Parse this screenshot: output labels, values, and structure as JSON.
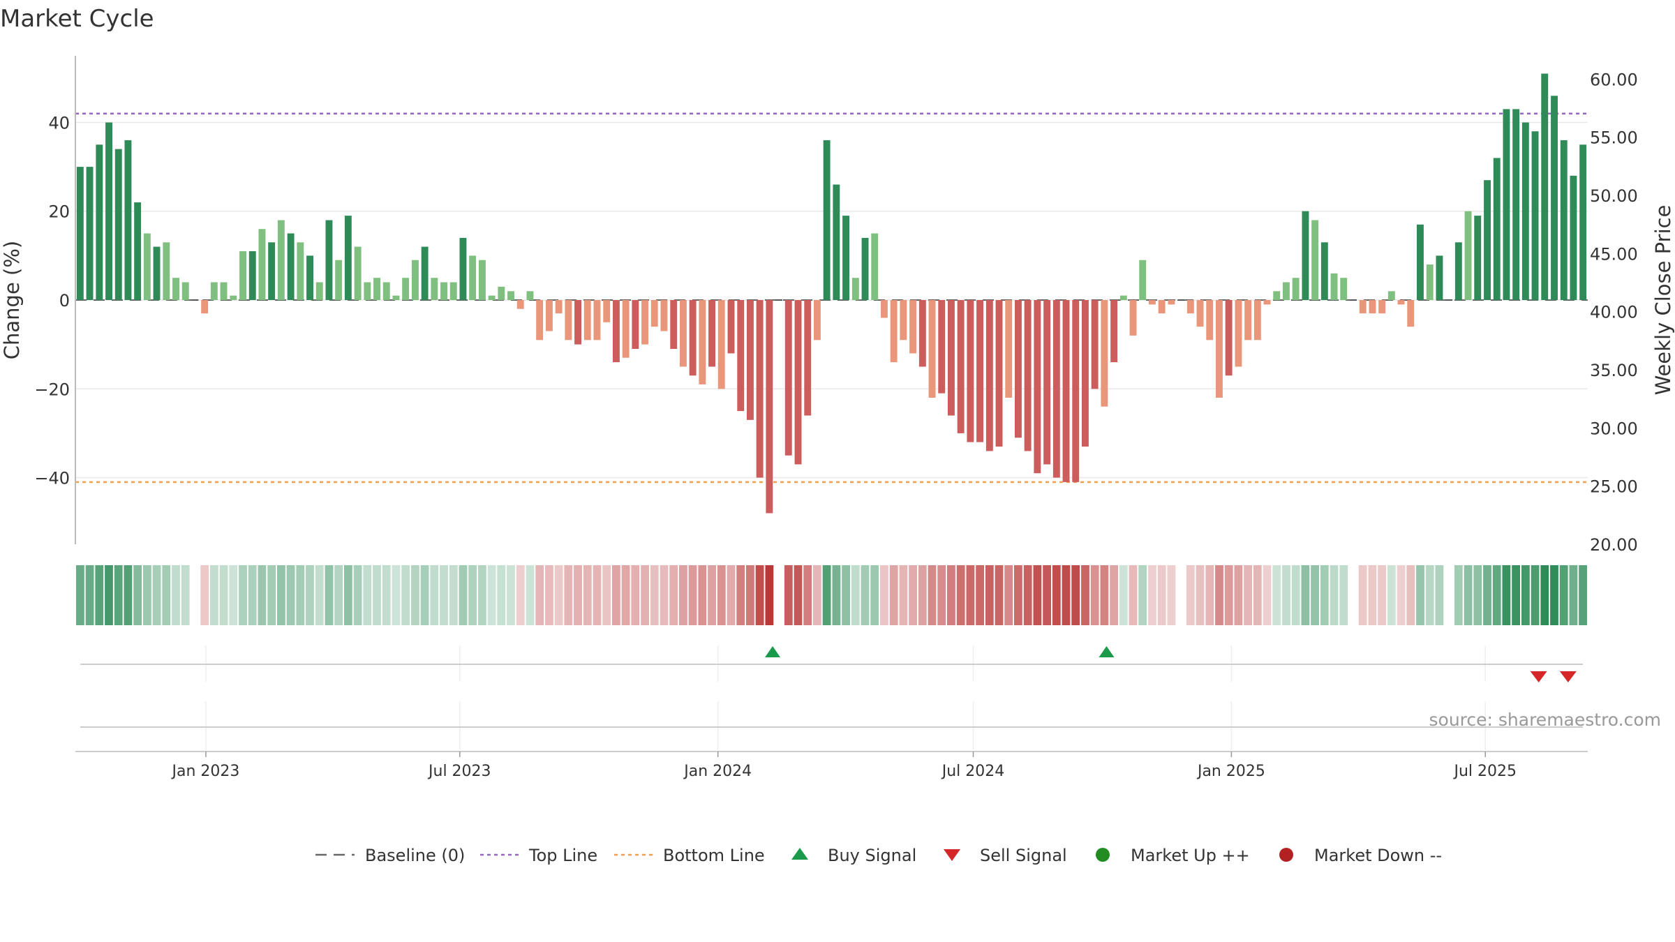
{
  "chart_data": {
    "type": "bar",
    "title": "Market Cycle",
    "ylabel_left": "Change (%)",
    "ylabel_right": "Weekly Close Price",
    "y_left_range": [
      -55,
      55
    ],
    "y_left_ticks": [
      40,
      20,
      0,
      -20,
      -40
    ],
    "y_left_tick_labels": [
      "40",
      "20",
      "0",
      "−20",
      "−40"
    ],
    "y_right_range": [
      20.0,
      62.0
    ],
    "y_right_tick_labels": [
      "60.00",
      "55.00",
      "50.00",
      "45.00",
      "40.00",
      "35.00",
      "30.00",
      "25.00",
      "20.00"
    ],
    "top_line": 42,
    "bottom_line": -41,
    "x_start": "2022-09-30",
    "x_end": "2025-09-12",
    "date_tick_labels": [
      "Jan 2023",
      "Jul 2023",
      "Jan 2024",
      "Jul 2024",
      "Jan 2025",
      "Jul 2025"
    ],
    "date_tick_dates": [
      "2023-01-01",
      "2023-07-01",
      "2024-01-01",
      "2024-07-01",
      "2025-01-01",
      "2025-07-01"
    ],
    "values": [
      30,
      30,
      35,
      40,
      34,
      36,
      22,
      15,
      12,
      13,
      5,
      4,
      0,
      -3,
      4,
      4,
      1,
      11,
      11,
      16,
      13,
      18,
      15,
      13,
      10,
      4,
      18,
      9,
      19,
      12,
      4,
      5,
      4,
      1,
      5,
      9,
      12,
      5,
      4,
      4,
      14,
      10,
      9,
      1,
      3,
      2,
      -2,
      2,
      -9,
      -7,
      -3,
      -9,
      -10,
      -9,
      -9,
      -5,
      -14,
      -13,
      -11,
      -10,
      -6,
      -7,
      -11,
      -15,
      -17,
      -19,
      -15,
      -20,
      -12,
      -25,
      -27,
      -40,
      -48,
      0,
      -35,
      -37,
      -26,
      -9,
      36,
      26,
      19,
      5,
      14,
      15,
      -4,
      -14,
      -9,
      -12,
      -15,
      -22,
      -21,
      -26,
      -30,
      -32,
      -32,
      -34,
      -33,
      -22,
      -31,
      -34,
      -39,
      -37,
      -40,
      -41,
      -41,
      -33,
      -20,
      -24,
      -14,
      1,
      -8,
      9,
      -1,
      -3,
      -1,
      0,
      -3,
      -6,
      -9,
      -22,
      -17,
      -15,
      -9,
      -9,
      -1,
      2,
      4,
      5,
      20,
      18,
      13,
      6,
      5,
      0,
      -3,
      -3,
      -3,
      2,
      -1,
      -6,
      17,
      8,
      10,
      0,
      13,
      20,
      19,
      27,
      32,
      43,
      43,
      40,
      38,
      51,
      46,
      36,
      28,
      35
    ],
    "legend": [
      {
        "key": "baseline",
        "label": "Baseline (0)"
      },
      {
        "key": "top",
        "label": "Top Line"
      },
      {
        "key": "bottom",
        "label": "Bottom Line"
      },
      {
        "key": "buy",
        "label": "Buy Signal"
      },
      {
        "key": "sell",
        "label": "Sell Signal"
      },
      {
        "key": "up",
        "label": "Market Up ++"
      },
      {
        "key": "down",
        "label": "Market Down --"
      }
    ],
    "buy_signal_dates": [
      "2024-02-09",
      "2024-10-04"
    ],
    "sell_signal_dates": [
      "2025-08-08",
      "2025-08-29"
    ],
    "colors": {
      "pos_strong": "#2e8b57",
      "pos_light": "#7fbf7f",
      "neg_strong": "#cd5c5c",
      "neg_light": "#e9967a",
      "top_line": "#9467bd",
      "bottom_line": "#f0a050",
      "baseline": "#666666",
      "buy": "#1a9a4a",
      "sell": "#d62728",
      "market_up": "#228b22",
      "market_down": "#b22222"
    }
  },
  "source_text": "source: sharemaestro.com"
}
